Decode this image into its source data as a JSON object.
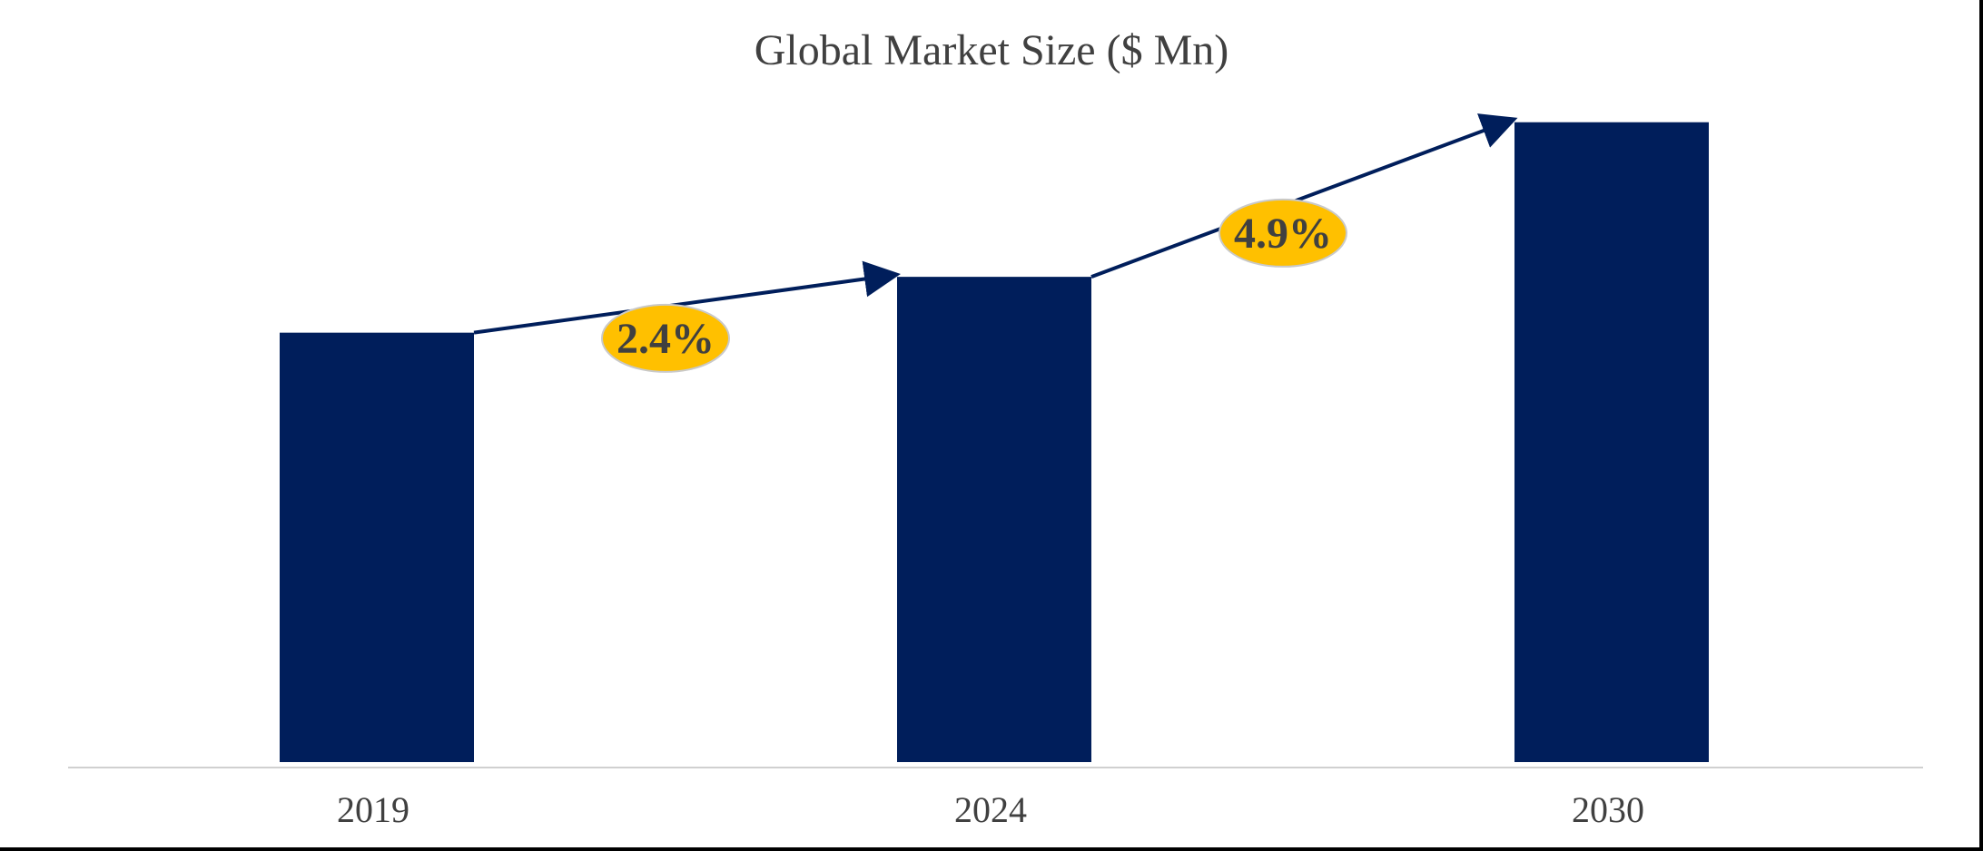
{
  "chart_data": {
    "type": "bar",
    "title": "Global Market Size ($ Mn)",
    "categories": [
      "2019",
      "2024",
      "2030"
    ],
    "values": [
      100,
      113,
      149
    ],
    "ylim": [
      0,
      150
    ],
    "grid": false,
    "bar_color": "#001E5B",
    "annotations": [
      {
        "label": "2.4%",
        "from": "2019",
        "to": "2024",
        "color": "#FFC000"
      },
      {
        "label": "4.9%",
        "from": "2024",
        "to": "2030",
        "color": "#FFC000"
      }
    ]
  }
}
